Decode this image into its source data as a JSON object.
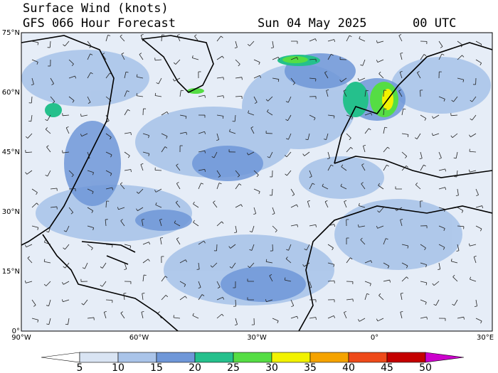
{
  "header": {
    "title": "Surface Wind (knots)",
    "subtitle": "GFS 066 Hour Forecast",
    "date": "Sun 04 May 2025",
    "time": "00 UTC"
  },
  "map": {
    "lat_labels": [
      "75°N",
      "60°N",
      "45°N",
      "30°N",
      "15°N",
      "0°"
    ],
    "lon_labels": [
      "90°W",
      "60°W",
      "30°W",
      "0°",
      "30°E"
    ]
  },
  "colorbar": {
    "ticks": [
      5,
      10,
      15,
      20,
      25,
      30,
      35,
      40,
      45,
      50
    ],
    "colors": [
      "#ffffff",
      "#d9e4f3",
      "#aac4e9",
      "#6f97d8",
      "#25c08c",
      "#55dd44",
      "#f2f200",
      "#f5a300",
      "#ee4a1a",
      "#c40000",
      "#cc00cc"
    ]
  }
}
